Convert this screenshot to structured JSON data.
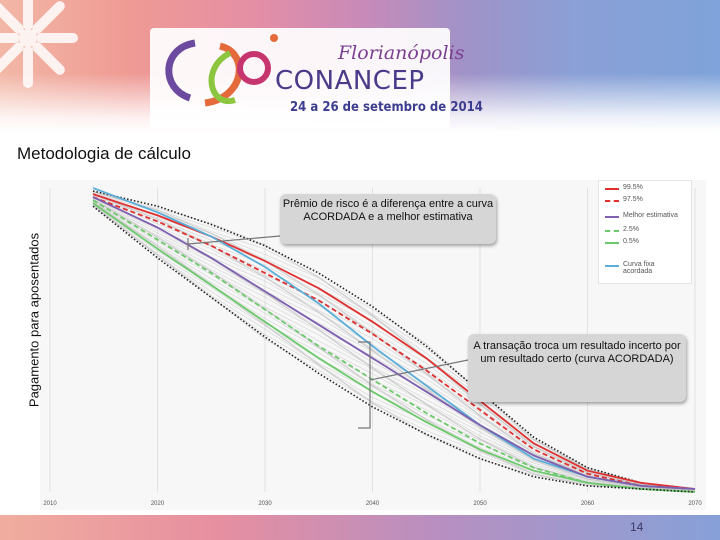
{
  "header": {
    "city": "Florianópolis",
    "conference": "CONANCEP",
    "dates": "24 a 26 de setembro de 2014"
  },
  "slide": {
    "title": "Metodologia de cálculo",
    "page_number": "14"
  },
  "callouts": {
    "risk_premium": "Prêmio de risco é a diferença entre a curva ACORDADA e a melhor estimativa",
    "transaction": "A transação troca um resultado incerto por um resultado certo (curva ACORDADA)"
  },
  "chart_data": {
    "type": "line",
    "title": "",
    "xlabel": "",
    "ylabel": "Pagamento para aposentados",
    "xlim": [
      2010,
      2070
    ],
    "ylim": [
      0,
      100
    ],
    "x_ticks": [
      "2010",
      "2020",
      "2030",
      "2040",
      "2050",
      "2060",
      "2070"
    ],
    "grid": true,
    "legend_position": "top-right",
    "x": [
      2014,
      2020,
      2025,
      2030,
      2035,
      2040,
      2045,
      2050,
      2055,
      2060,
      2065,
      2070
    ],
    "series": [
      {
        "name": "99.5%",
        "style": "dotted",
        "color": "#222222",
        "values": [
          99,
          94,
          88,
          81,
          72,
          61,
          48,
          33,
          18,
          8,
          3,
          1
        ]
      },
      {
        "name": "99.5%",
        "style": "solid",
        "color": "#e03030",
        "values": [
          98,
          91,
          84,
          76,
          67,
          56,
          44,
          30,
          16,
          7,
          3,
          1
        ]
      },
      {
        "name": "97.5%",
        "style": "dashed",
        "color": "#e03030",
        "values": [
          97,
          89,
          81,
          72,
          63,
          52,
          40,
          27,
          14,
          6,
          2,
          1
        ]
      },
      {
        "name": "Curva fixa acordada",
        "style": "solid",
        "color": "#5aaed8",
        "values": [
          100,
          92,
          84,
          74,
          62,
          48,
          35,
          22,
          11,
          5,
          2,
          1
        ]
      },
      {
        "name": "Melhor estimativa",
        "style": "solid",
        "color": "#7e5fb0",
        "values": [
          97,
          87,
          77,
          66,
          55,
          44,
          33,
          22,
          12,
          5,
          2,
          1
        ]
      },
      {
        "name": "2.5%",
        "style": "dashed",
        "color": "#6cc96c",
        "values": [
          96,
          83,
          72,
          60,
          48,
          37,
          26,
          16,
          8,
          3,
          1,
          0
        ]
      },
      {
        "name": "0.5%",
        "style": "solid",
        "color": "#6cc96c",
        "values": [
          95,
          80,
          68,
          56,
          44,
          33,
          23,
          14,
          7,
          3,
          1,
          0
        ]
      },
      {
        "name": "0.5%",
        "style": "dotted",
        "color": "#222222",
        "values": [
          94,
          77,
          64,
          51,
          39,
          28,
          19,
          11,
          5,
          2,
          1,
          0
        ]
      }
    ],
    "legend": [
      {
        "label": "99.5%",
        "color": "#e03030",
        "style": "solid"
      },
      {
        "label": "97.5%",
        "color": "#e03030",
        "style": "dashed"
      },
      {
        "label": "Melhor estimativa",
        "color": "#7e5fb0",
        "style": "solid"
      },
      {
        "label": "2.5%",
        "color": "#6cc96c",
        "style": "dashed"
      },
      {
        "label": "0.5%",
        "color": "#6cc96c",
        "style": "solid"
      },
      {
        "label": "Curva fixa acordada",
        "color": "#5aaed8",
        "style": "solid"
      }
    ]
  }
}
